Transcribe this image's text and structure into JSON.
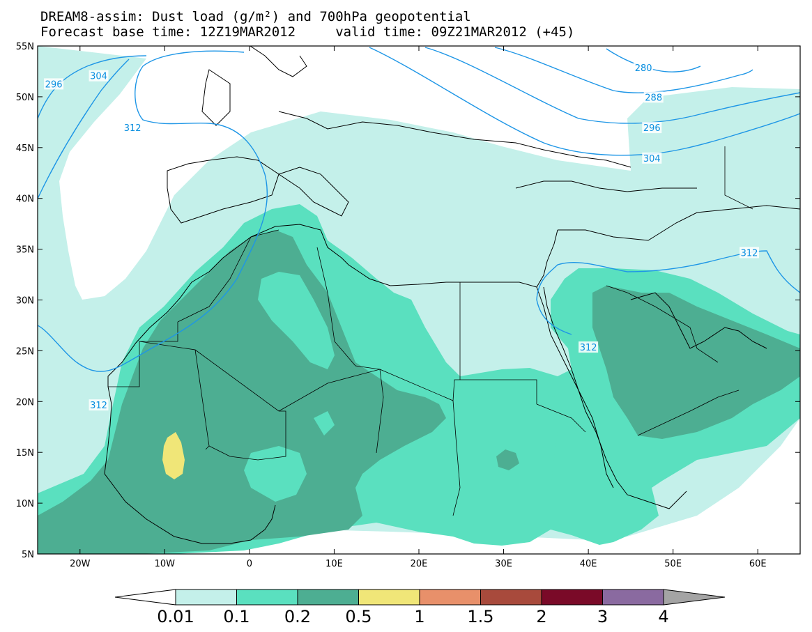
{
  "header": {
    "title_line1": "DREAM8-assim: Dust load (g/m²) and 700hPa geopotential",
    "title_line2": "Forecast base time: 12Z19MAR2012     valid time: 09Z21MAR2012 (+45)"
  },
  "map": {
    "lon_range": [
      -25,
      65
    ],
    "lat_range": [
      5,
      55
    ],
    "lon_ticks": [
      {
        "value": -20,
        "label": "20W"
      },
      {
        "value": -10,
        "label": "10W"
      },
      {
        "value": 0,
        "label": "0"
      },
      {
        "value": 10,
        "label": "10E"
      },
      {
        "value": 20,
        "label": "20E"
      },
      {
        "value": 30,
        "label": "30E"
      },
      {
        "value": 40,
        "label": "40E"
      },
      {
        "value": 50,
        "label": "50E"
      },
      {
        "value": 60,
        "label": "60E"
      }
    ],
    "lat_ticks": [
      {
        "value": 55,
        "label": "55N"
      },
      {
        "value": 50,
        "label": "50N"
      },
      {
        "value": 45,
        "label": "45N"
      },
      {
        "value": 40,
        "label": "40N"
      },
      {
        "value": 35,
        "label": "35N"
      },
      {
        "value": 30,
        "label": "30N"
      },
      {
        "value": 25,
        "label": "25N"
      },
      {
        "value": 20,
        "label": "20N"
      },
      {
        "value": 15,
        "label": "15N"
      },
      {
        "value": 10,
        "label": "10N"
      },
      {
        "value": 5,
        "label": "5N"
      }
    ],
    "contour_color": "#1e96e6",
    "contour_labels": [
      {
        "text": "296",
        "lon": -23.1,
        "lat": 51.2
      },
      {
        "text": "304",
        "lon": -17.8,
        "lat": 52.0
      },
      {
        "text": "312",
        "lon": -13.8,
        "lat": 46.9
      },
      {
        "text": "280",
        "lon": 46.5,
        "lat": 52.8
      },
      {
        "text": "288",
        "lon": 47.7,
        "lat": 49.9
      },
      {
        "text": "296",
        "lon": 47.5,
        "lat": 46.9
      },
      {
        "text": "304",
        "lon": 47.5,
        "lat": 43.9
      },
      {
        "text": "312",
        "lon": 59.0,
        "lat": 34.6
      },
      {
        "text": "312",
        "lon": 40.0,
        "lat": 25.3
      },
      {
        "text": "312",
        "lon": -17.8,
        "lat": 19.6
      }
    ]
  },
  "colorbar": {
    "colors": [
      "#c4f0ea",
      "#5ae0bf",
      "#4dae92",
      "#f0e678",
      "#e8906a",
      "#a84a3c",
      "#7a0a28",
      "#8a6aa0"
    ],
    "under_color": "#ffffff",
    "over_color": "#a4a4a4",
    "labels": [
      "0.01",
      "0.1",
      "0.2",
      "0.5",
      "1",
      "1.5",
      "2",
      "3",
      "4"
    ]
  }
}
